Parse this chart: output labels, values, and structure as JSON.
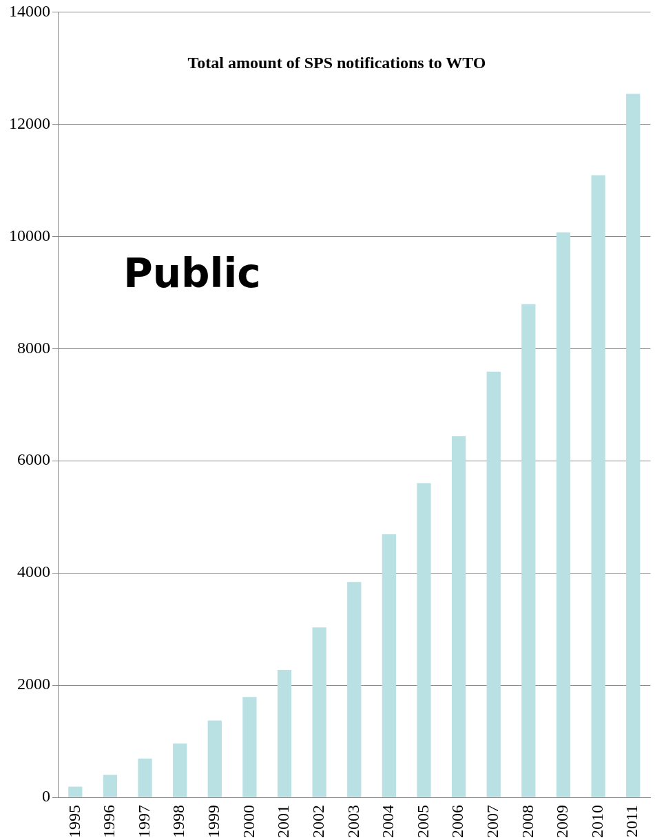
{
  "chart_data": {
    "type": "bar",
    "title": "Total amount of SPS notifications to WTO",
    "categories": [
      "1995",
      "1996",
      "1997",
      "1998",
      "1999",
      "2000",
      "2001",
      "2002",
      "2003",
      "2004",
      "2005",
      "2006",
      "2007",
      "2008",
      "2009",
      "2010",
      "2011"
    ],
    "values": [
      190,
      400,
      690,
      960,
      1370,
      1790,
      2270,
      3030,
      3840,
      4690,
      5600,
      6440,
      7590,
      8790,
      10070,
      11090,
      12540
    ],
    "color": "#b9e0e2",
    "ylim": [
      0,
      14000
    ],
    "yticks": [
      0,
      2000,
      4000,
      6000,
      8000,
      10000,
      12000,
      14000
    ],
    "grid": "y",
    "annotations": [
      "Public"
    ]
  }
}
